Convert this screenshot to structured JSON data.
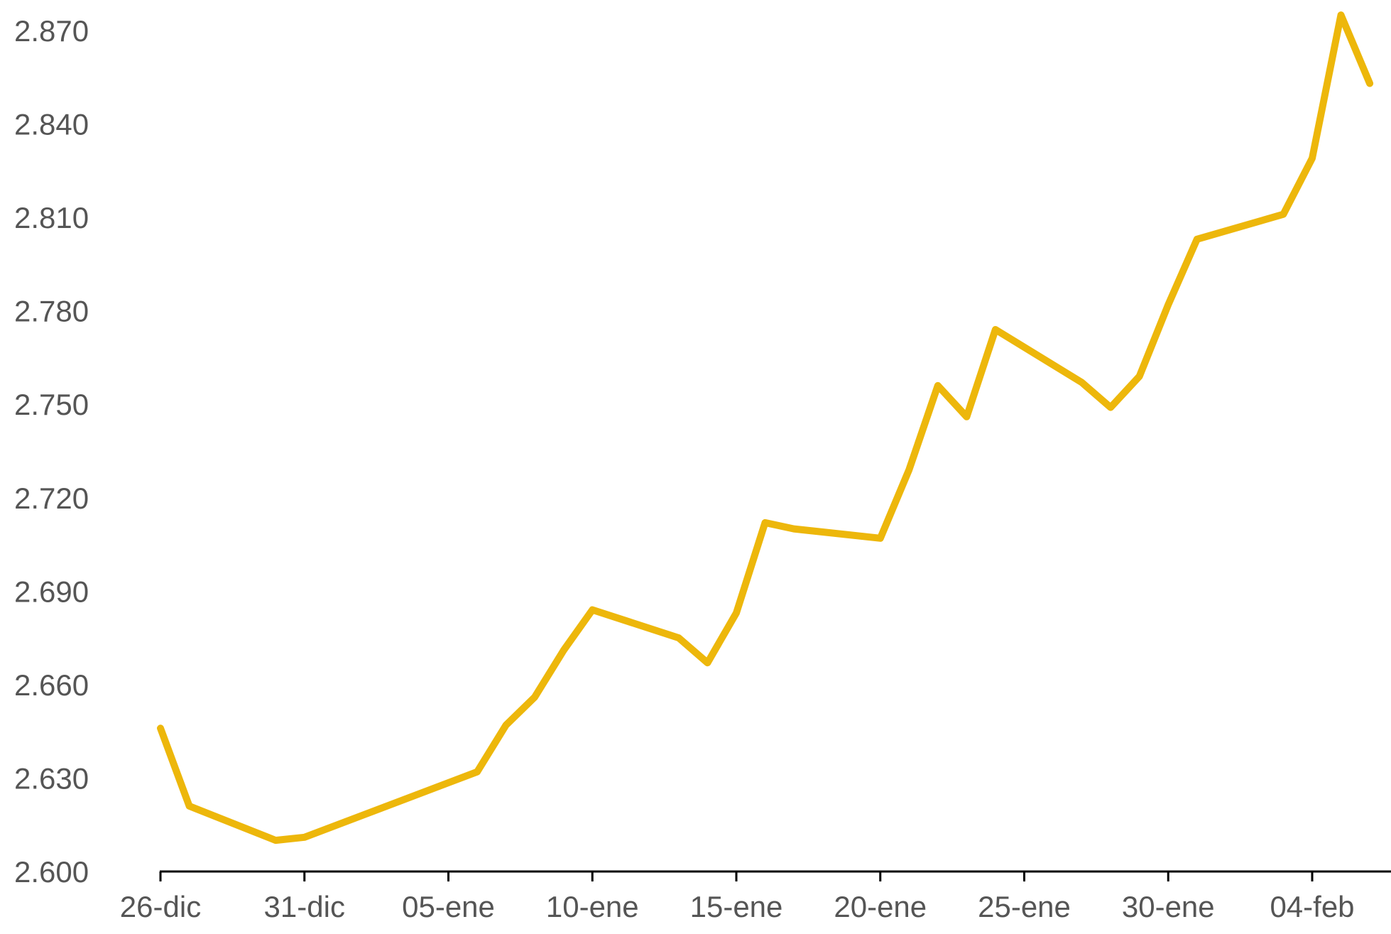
{
  "chart_data": {
    "type": "line",
    "title": "",
    "xlabel": "",
    "ylabel": "",
    "x_tick_labels": [
      "26-dic",
      "31-dic",
      "05-ene",
      "10-ene",
      "15-ene",
      "20-ene",
      "25-ene",
      "30-ene",
      "04-feb"
    ],
    "y_tick_labels": [
      "2.600",
      "2.630",
      "2.660",
      "2.690",
      "2.720",
      "2.750",
      "2.780",
      "2.810",
      "2.840",
      "2.870"
    ],
    "ylim": [
      2600,
      2880
    ],
    "grid": false,
    "legend": "none",
    "series": [
      {
        "color": "#EDB70B",
        "points": [
          {
            "x": "2022-12-26",
            "y": 2646
          },
          {
            "x": "2022-12-27",
            "y": 2621
          },
          {
            "x": "2022-12-30",
            "y": 2610
          },
          {
            "x": "2022-12-31",
            "y": 2611
          },
          {
            "x": "2023-01-06",
            "y": 2632
          },
          {
            "x": "2023-01-07",
            "y": 2647
          },
          {
            "x": "2023-01-08",
            "y": 2656
          },
          {
            "x": "2023-01-09",
            "y": 2671
          },
          {
            "x": "2023-01-10",
            "y": 2684
          },
          {
            "x": "2023-01-13",
            "y": 2675
          },
          {
            "x": "2023-01-14",
            "y": 2667
          },
          {
            "x": "2023-01-15",
            "y": 2683
          },
          {
            "x": "2023-01-16",
            "y": 2712
          },
          {
            "x": "2023-01-17",
            "y": 2710
          },
          {
            "x": "2023-01-20",
            "y": 2707
          },
          {
            "x": "2023-01-21",
            "y": 2729
          },
          {
            "x": "2023-01-22",
            "y": 2756
          },
          {
            "x": "2023-01-23",
            "y": 2746
          },
          {
            "x": "2023-01-24",
            "y": 2774
          },
          {
            "x": "2023-01-27",
            "y": 2757
          },
          {
            "x": "2023-01-28",
            "y": 2749
          },
          {
            "x": "2023-01-29",
            "y": 2759
          },
          {
            "x": "2023-01-30",
            "y": 2782
          },
          {
            "x": "2023-01-31",
            "y": 2803
          },
          {
            "x": "2023-02-03",
            "y": 2811
          },
          {
            "x": "2023-02-04",
            "y": 2829
          },
          {
            "x": "2023-02-05",
            "y": 2875
          },
          {
            "x": "2023-02-06",
            "y": 2853
          }
        ]
      }
    ]
  }
}
